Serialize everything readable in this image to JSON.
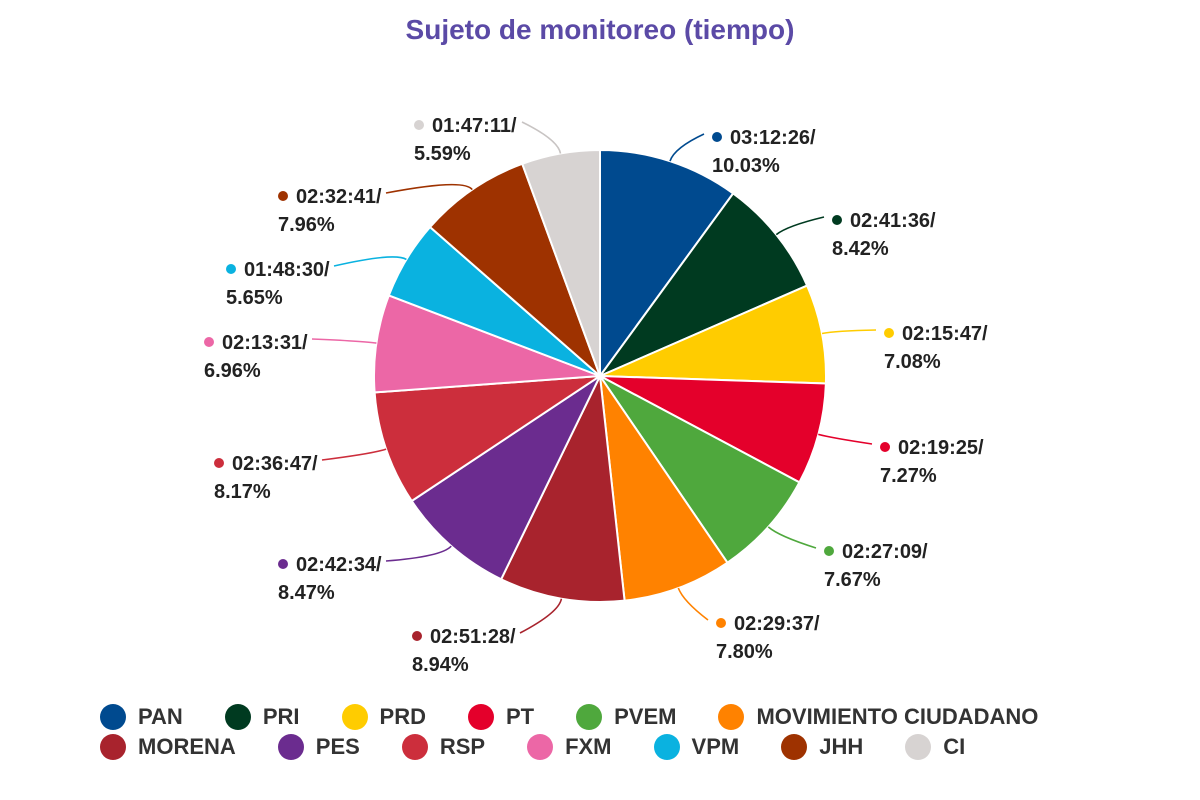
{
  "chart_data": {
    "type": "pie",
    "title": "Sujeto de monitoreo (tiempo)",
    "slices": [
      {
        "name": "PAN",
        "time": "03:12:26/",
        "percent": "10.03%",
        "value": 10.03,
        "color": "#004a8f"
      },
      {
        "name": "PRI",
        "time": "02:41:36/",
        "percent": "8.42%",
        "value": 8.42,
        "color": "#003a20"
      },
      {
        "name": "PRD",
        "time": "02:15:47/",
        "percent": "7.08%",
        "value": 7.08,
        "color": "#ffcc00"
      },
      {
        "name": "PT",
        "time": "02:19:25/",
        "percent": "7.27%",
        "value": 7.27,
        "color": "#e4002b"
      },
      {
        "name": "PVEM",
        "time": "02:27:09/",
        "percent": "7.67%",
        "value": 7.67,
        "color": "#4fa83d"
      },
      {
        "name": "MOVIMIENTO CIUDADANO",
        "time": "02:29:37/",
        "percent": "7.80%",
        "value": 7.8,
        "color": "#ff8200"
      },
      {
        "name": "MORENA",
        "time": "02:51:28/",
        "percent": "8.94%",
        "value": 8.94,
        "color": "#a8232d"
      },
      {
        "name": "PES",
        "time": "02:42:34/",
        "percent": "8.47%",
        "value": 8.47,
        "color": "#6b2c8f"
      },
      {
        "name": "RSP",
        "time": "02:36:47/",
        "percent": "8.17%",
        "value": 8.17,
        "color": "#cc2e3c"
      },
      {
        "name": "FXM",
        "time": "02:13:31/",
        "percent": "6.96%",
        "value": 6.96,
        "color": "#ec67a6"
      },
      {
        "name": "VPM",
        "time": "01:48:30/",
        "percent": "5.65%",
        "value": 5.65,
        "color": "#0ab2e0"
      },
      {
        "name": "JHH",
        "time": "02:32:41/",
        "percent": "7.96%",
        "value": 7.96,
        "color": "#9e3200"
      },
      {
        "name": "CI",
        "time": "01:47:11/",
        "percent": "5.59%",
        "value": 5.59,
        "color": "#d7d3d2"
      }
    ],
    "legend": {
      "placement": "bottom",
      "rows": [
        [
          "PAN",
          "PRI",
          "PRD",
          "PT",
          "PVEM",
          "MOVIMIENTO CIUDADANO"
        ],
        [
          "MORENA",
          "PES",
          "RSP",
          "FXM",
          "VPM",
          "JHH",
          "CI"
        ]
      ]
    }
  }
}
